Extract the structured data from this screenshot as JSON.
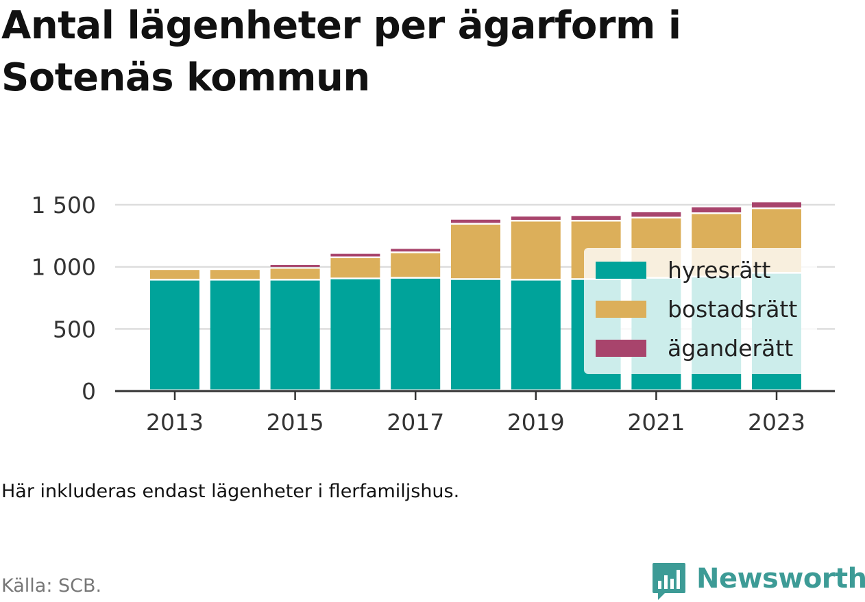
{
  "title": "Antal lägenheter per ägarform i Sotenäs kommun",
  "note": "Här inkluderas endast lägenheter i flerfamiljshus.",
  "source": "Källa: SCB.",
  "brand": {
    "name": "Newsworthy",
    "icon": "newsworthy-logo-icon",
    "color": "#3d9b96"
  },
  "chart_data": {
    "type": "bar",
    "stacked": true,
    "x": [
      2013,
      2014,
      2015,
      2016,
      2017,
      2018,
      2019,
      2020,
      2021,
      2022,
      2023
    ],
    "x_tick_labels": [
      "2013",
      "2015",
      "2017",
      "2019",
      "2021",
      "2023"
    ],
    "y_tick_values": [
      0,
      500,
      1000,
      1500
    ],
    "y_tick_labels": [
      "0",
      "500",
      "1 000",
      "1 500"
    ],
    "ylim": [
      0,
      1500
    ],
    "grid": true,
    "legend_position": "right",
    "series": [
      {
        "name": "hyresrätt",
        "color": "#00a39a",
        "values": [
          890,
          890,
          890,
          900,
          905,
          895,
          890,
          895,
          905,
          915,
          945
        ]
      },
      {
        "name": "bostadsrätt",
        "color": "#dcaf5a",
        "values": [
          85,
          85,
          95,
          170,
          205,
          445,
          475,
          470,
          485,
          510,
          520
        ]
      },
      {
        "name": "äganderätt",
        "color": "#a8446c",
        "values": [
          0,
          0,
          30,
          35,
          35,
          40,
          40,
          45,
          50,
          55,
          55
        ]
      }
    ]
  }
}
